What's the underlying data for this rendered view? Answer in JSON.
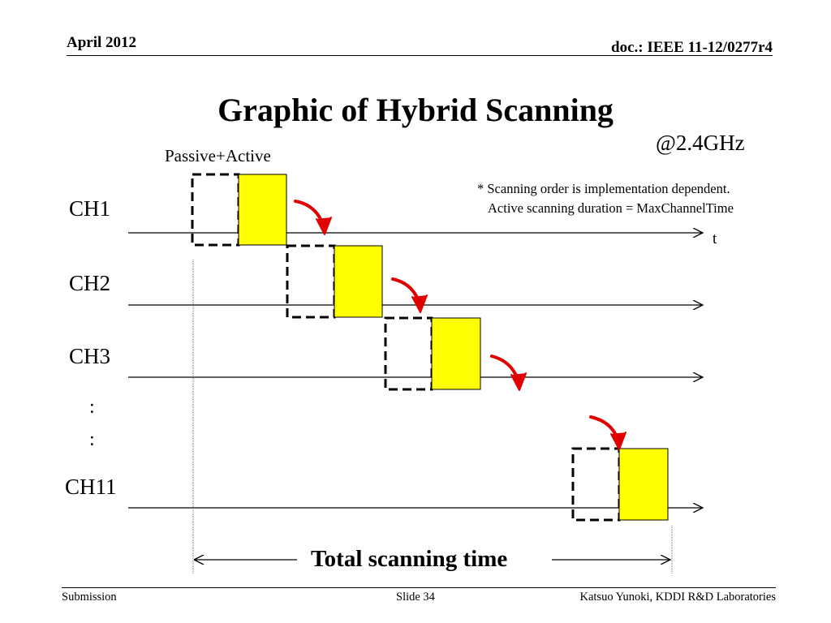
{
  "header": {
    "date": "April 2012",
    "doc_id": "doc.: IEEE 11-12/0277r4"
  },
  "title": "Graphic of Hybrid Scanning",
  "band": "@2.4GHz",
  "caption": "Passive+Active",
  "notes": [
    "* Scanning order is implementation dependent.",
    "Active scanning duration = MaxChannelTime"
  ],
  "channels": [
    "CH1",
    "CH2",
    "CH3",
    "CH11"
  ],
  "ellipsis": [
    ":",
    ":"
  ],
  "time_axis_label": "t",
  "span_label": "Total scanning time",
  "colors": {
    "active_fill": "#ffff00",
    "arrow": "#e00000",
    "line": "#000000"
  },
  "footer": {
    "left": "Submission",
    "center": "Slide 34",
    "right": "Katsuo Yunoki, KDDI R&D Laboratories"
  }
}
